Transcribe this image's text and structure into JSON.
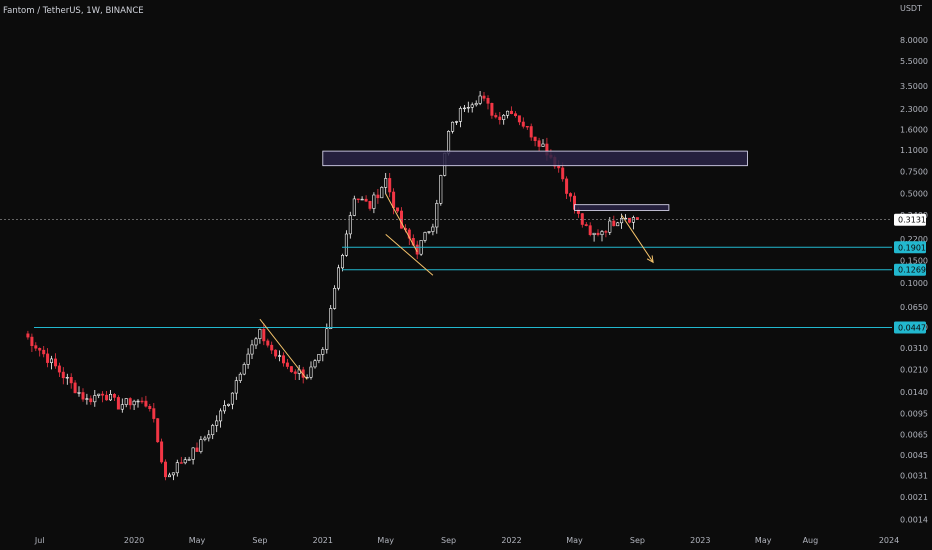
{
  "header": {
    "symbol_title": "Fantom / TetherUS, 1W, BINANCE",
    "currency": "USDT"
  },
  "colors": {
    "background": "#0c0c0c",
    "up_candle": "#ffffff",
    "down_candle": "#f23645",
    "level_line": "#22b8cf",
    "trendline": "#f5c36b",
    "zone_border": "#e9e6ff",
    "zone_fill": "#2a2547",
    "current_price_badge": "#ffffff"
  },
  "chart_data": {
    "type": "candlestick",
    "title": "Fantom / TetherUS, 1W, BINANCE",
    "y_scale": "log",
    "ylim": [
      0.0012,
      11.5
    ],
    "y_ticks": [
      "8.0000",
      "5.5000",
      "3.5000",
      "2.3000",
      "1.6000",
      "1.1000",
      "0.7500",
      "0.5000",
      "0.3400",
      "0.2200",
      "0.1500",
      "0.1000",
      "0.0650",
      "0.0450",
      "0.0310",
      "0.0210",
      "0.0140",
      "0.0095",
      "0.0065",
      "0.0045",
      "0.0031",
      "0.0021",
      "0.0014"
    ],
    "x_ticks": [
      "Jul",
      "2020",
      "May",
      "Sep",
      "2021",
      "May",
      "Sep",
      "2022",
      "May",
      "Sep",
      "2023",
      "May",
      "Aug",
      "2024"
    ],
    "x_range": [
      "2019-06",
      "2024-01"
    ],
    "grid": false,
    "current_price": "0.3131",
    "levels": [
      {
        "label": "0.1901",
        "value": 0.1901
      },
      {
        "label": "0.1269",
        "value": 0.1269
      },
      {
        "label": "0.0447",
        "value": 0.0447
      }
    ],
    "zones": [
      {
        "from_date": "2021-01",
        "to_date": "2023-04",
        "low": 0.83,
        "high": 1.08
      },
      {
        "from_date": "2022-05",
        "to_date": "2022-11",
        "low": 0.37,
        "high": 0.41
      }
    ],
    "trendlines": [
      {
        "from": [
          "2020-09",
          0.052
        ],
        "to": [
          "2020-12",
          0.0175
        ]
      },
      {
        "from": [
          "2021-05",
          0.5
        ],
        "to": [
          "2021-07",
          0.175
        ]
      },
      {
        "from": [
          "2021-05",
          0.24
        ],
        "to": [
          "2021-08",
          0.115
        ]
      }
    ],
    "projection_arrow": {
      "from": [
        "2022-08",
        0.34
      ],
      "to": [
        "2022-10",
        0.145
      ]
    },
    "series": [
      {
        "keypoints": [
          [
            "2019-06",
            0.04
          ],
          [
            "2019-07",
            0.03
          ],
          [
            "2019-08",
            0.022
          ],
          [
            "2019-09",
            0.016
          ],
          [
            "2019-10",
            0.012
          ],
          [
            "2019-11",
            0.014
          ],
          [
            "2019-12",
            0.011
          ],
          [
            "2020-01",
            0.012
          ],
          [
            "2020-02",
            0.011
          ],
          [
            "2020-03",
            0.003
          ],
          [
            "2020-04",
            0.004
          ],
          [
            "2020-05",
            0.005
          ],
          [
            "2020-06",
            0.0075
          ],
          [
            "2020-07",
            0.012
          ],
          [
            "2020-08",
            0.025
          ],
          [
            "2020-09",
            0.04
          ],
          [
            "2020-10",
            0.027
          ],
          [
            "2020-11",
            0.021
          ],
          [
            "2020-12",
            0.019
          ],
          [
            "2021-01",
            0.028
          ],
          [
            "2021-02",
            0.13
          ],
          [
            "2021-03",
            0.48
          ],
          [
            "2021-04",
            0.4
          ],
          [
            "2021-05",
            0.65
          ],
          [
            "2021-06",
            0.27
          ],
          [
            "2021-07",
            0.18
          ],
          [
            "2021-08",
            0.3
          ],
          [
            "2021-09",
            1.5
          ],
          [
            "2021-10",
            2.5
          ],
          [
            "2021-11",
            2.9
          ],
          [
            "2021-12",
            2.0
          ],
          [
            "2022-01",
            2.3
          ],
          [
            "2022-02",
            1.6
          ],
          [
            "2022-03",
            1.2
          ],
          [
            "2022-04",
            0.8
          ],
          [
            "2022-05",
            0.38
          ],
          [
            "2022-06",
            0.23
          ],
          [
            "2022-07",
            0.27
          ],
          [
            "2022-08",
            0.34
          ],
          [
            "2022-09",
            0.3131
          ]
        ]
      }
    ]
  }
}
